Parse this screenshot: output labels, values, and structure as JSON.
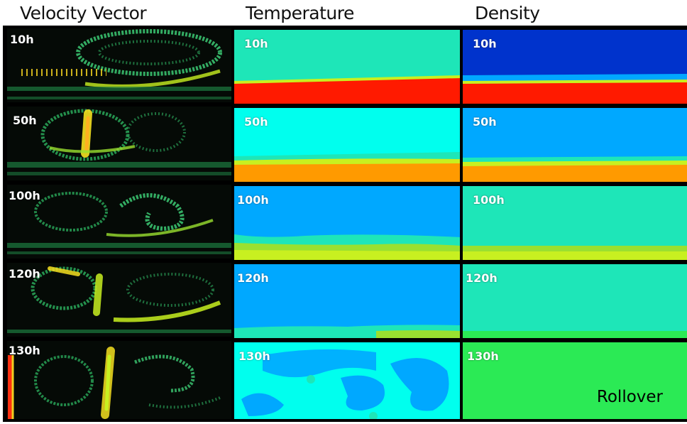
{
  "columns": {
    "velocity": "Velocity Vector",
    "temperature": "Temperature",
    "density": "Density"
  },
  "rows": [
    {
      "time": "10h"
    },
    {
      "time": "50h"
    },
    {
      "time": "100h"
    },
    {
      "time": "120h"
    },
    {
      "time": "130h"
    }
  ],
  "annotation": "Rollover",
  "colors": {
    "red": "#ff1a00",
    "orange": "#ff9a00",
    "cyan": "#00ffee",
    "aqua": "#1ee6b8",
    "sky": "#00a8ff",
    "blue": "#0033cc",
    "green": "#2bea55",
    "lime": "#b6f21c"
  }
}
